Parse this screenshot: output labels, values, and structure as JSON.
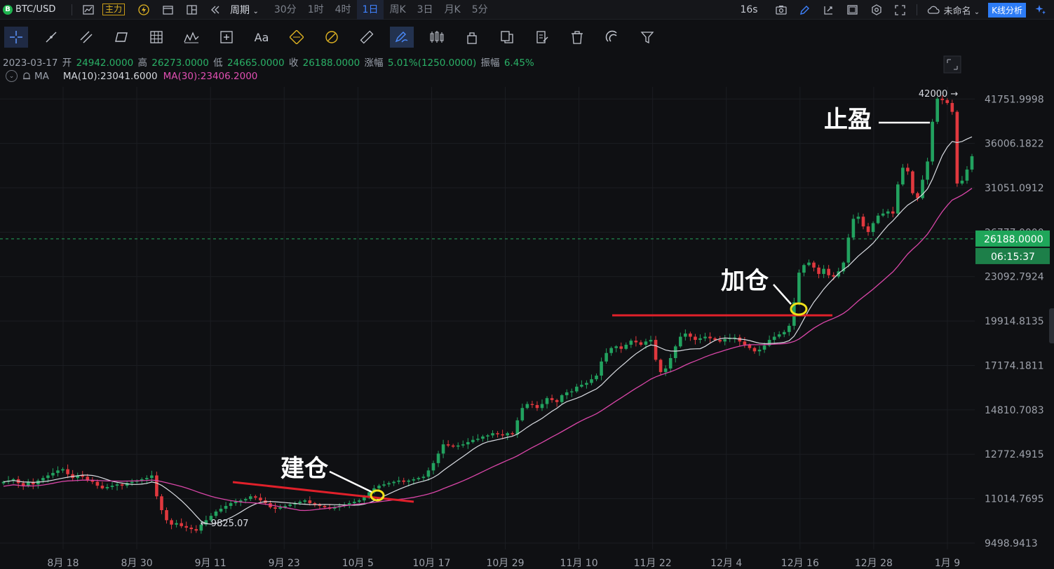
{
  "toolbar": {
    "symbol": "BTC/USD",
    "main_tag": "主力",
    "period_label": "周期",
    "timeframes": [
      "30分",
      "1时",
      "4时",
      "1日",
      "周K",
      "3日",
      "月K",
      "5分"
    ],
    "active_timeframe": "1日",
    "refresh": "16s",
    "layout_name": "未命名",
    "analysis_button": "K线分析"
  },
  "drawing_tools": [
    "crosshair-icon",
    "trend-line-icon",
    "parallel-channel-icon",
    "rectangle-icon",
    "grid-icon",
    "pattern-icon",
    "measure-icon",
    "text-icon",
    "fib-icon",
    "brush-icon",
    "ruler-icon",
    "magnet-draw-icon",
    "candles-icon",
    "lock-icon",
    "clone-icon",
    "note-icon",
    "delete-icon",
    "magnet-icon",
    "filter-icon"
  ],
  "drawing_text_tool": "Aa",
  "ohlc": {
    "date": "2023-03-17",
    "open_label": "开",
    "open": "24942.0000",
    "high_label": "高",
    "high": "26273.0000",
    "low_label": "低",
    "low": "24665.0000",
    "close_label": "收",
    "close": "26188.0000",
    "change_label": "涨幅",
    "change": "5.01%(1250.0000)",
    "amplitude_label": "振幅",
    "amplitude": "6.45%"
  },
  "indicators": {
    "name": "MA",
    "ma10": "MA(10):23041.6000",
    "ma30": "MA(30):23406.2000"
  },
  "chart_data": {
    "type": "candlestick",
    "price_axis_labels": [
      "41751.9998",
      "36006.1822",
      "31051.0912",
      "26777.0000",
      "23092.7924",
      "19914.8135",
      "17174.1811",
      "14810.7083",
      "12772.4915",
      "11014.7695",
      "9498.9413"
    ],
    "price_axis_range": [
      9300,
      44500
    ],
    "date_labels": [
      "8月 18",
      "8月 30",
      "9月 11",
      "9月 23",
      "10月 5",
      "10月 17",
      "10月 29",
      "11月 10",
      "11月 22",
      "12月 4",
      "12月 16",
      "12月 28",
      "1月 9"
    ],
    "current_price": "26188.0000",
    "countdown": "06:15:37",
    "high_marker": "42000",
    "low_marker": "9825.07",
    "annotations": [
      "建仓",
      "加仓",
      "止盈"
    ],
    "colors": {
      "up": "#22a25f",
      "down": "#e0383e",
      "ma10": "#d9dce2",
      "ma30": "#d946a8",
      "markup": "#e0202a",
      "circle": "#f1e11a"
    },
    "closes": [
      11650,
      11700,
      11750,
      11600,
      11500,
      11650,
      11550,
      11700,
      11800,
      11900,
      12000,
      12100,
      12150,
      11950,
      11800,
      11900,
      11850,
      11700,
      11650,
      11500,
      11400,
      11450,
      11500,
      11550,
      11500,
      11600,
      11650,
      11700,
      11750,
      11800,
      11900,
      11100,
      10600,
      10250,
      10100,
      10150,
      10050,
      10000,
      9950,
      9900,
      10100,
      10250,
      10400,
      10550,
      10650,
      10750,
      10850,
      10900,
      10950,
      11000,
      11100,
      11050,
      10950,
      10850,
      10700,
      10650,
      10700,
      10750,
      10800,
      10850,
      10900,
      10950,
      10850,
      10800,
      10750,
      10700,
      10650,
      10700,
      10750,
      10800,
      10850,
      10900,
      10950,
      11100,
      11250,
      11400,
      11500,
      11550,
      11600,
      11650,
      11700,
      11650,
      11700,
      11750,
      11800,
      11850,
      12100,
      12400,
      12800,
      13200,
      13150,
      13100,
      13150,
      13200,
      13300,
      13400,
      13450,
      13550,
      13600,
      13700,
      13650,
      13600,
      13700,
      13650,
      14300,
      14900,
      15100,
      15050,
      14900,
      15100,
      15400,
      15300,
      15200,
      15550,
      15700,
      15750,
      16000,
      16100,
      16200,
      16400,
      16600,
      17400,
      17900,
      18200,
      18300,
      18150,
      18400,
      18650,
      18550,
      18400,
      18600,
      18700,
      17500,
      16800,
      17000,
      17600,
      18300,
      18900,
      19100,
      18900,
      18700,
      18800,
      18900,
      18800,
      18700,
      18600,
      18750,
      18800,
      18850,
      18600,
      18400,
      18200,
      18000,
      18100,
      18350,
      18700,
      18900,
      19050,
      19200,
      19600,
      21200,
      23400,
      24000,
      24200,
      23800,
      23300,
      23700,
      23200,
      23100,
      23500,
      24200,
      26300,
      28000,
      28200,
      27300,
      26800,
      27600,
      28300,
      28500,
      28700,
      28500,
      31400,
      33200,
      32800,
      30500,
      30000,
      31900,
      33900,
      38700,
      41800,
      41600,
      41200,
      40000,
      31500,
      31800,
      33000,
      34500
    ]
  }
}
